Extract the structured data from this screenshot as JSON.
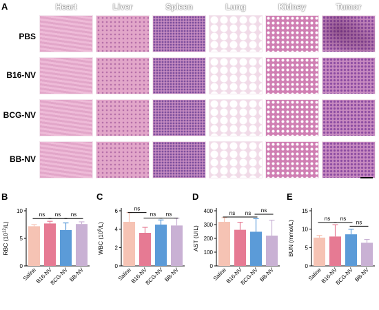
{
  "panel_labels": {
    "a": "A",
    "b": "B",
    "c": "C",
    "d": "D",
    "e": "E"
  },
  "histology": {
    "columns": [
      "Heart",
      "Liver",
      "Spleen",
      "Lung",
      "Kidney",
      "Tumor"
    ],
    "rows": [
      "PBS",
      "B16-NV",
      "BCG-NV",
      "BB-NV"
    ],
    "colors": {
      "tissue": "#e2a6c9",
      "tissue_dark": "#b56fa8",
      "pale": "#f1dbe8"
    }
  },
  "series_colors": [
    "#f6c3b4",
    "#e67a93",
    "#5b9bd8",
    "#c9b1d4"
  ],
  "chart_data": [
    {
      "type": "bar",
      "categories": [
        "Saline",
        "B16-NV",
        "BCG-NV",
        "BB-NV"
      ],
      "values": [
        7.2,
        7.7,
        6.5,
        7.6
      ],
      "errors": [
        0.3,
        0.4,
        1.3,
        0.4
      ],
      "ylabel_parts": [
        "RBC (10",
        "12",
        "/L)"
      ],
      "ylim": [
        0,
        10
      ],
      "yticks": [
        "0",
        "5",
        "10"
      ],
      "ytick_values": [
        0,
        5,
        10
      ],
      "sig": [
        {
          "from": 0,
          "to": 1,
          "label": "ns",
          "y": 8.6
        },
        {
          "from": 1,
          "to": 2,
          "label": "ns",
          "y": 8.6
        },
        {
          "from": 2,
          "to": 3,
          "label": "ns",
          "y": 8.6
        }
      ]
    },
    {
      "type": "bar",
      "categories": [
        "Saline",
        "B16-NV",
        "BCG-NV",
        "BB-NV"
      ],
      "values": [
        4.8,
        3.6,
        4.5,
        4.4
      ],
      "errors": [
        1.0,
        0.6,
        0.5,
        0.8
      ],
      "ylabel_parts": [
        "WBC (10",
        "9",
        "/L)"
      ],
      "ylim": [
        0,
        6
      ],
      "yticks": [
        "0",
        "2",
        "4",
        "6"
      ],
      "ytick_values": [
        0,
        2,
        4,
        6
      ],
      "sig": [
        {
          "from": 0,
          "to": 1,
          "label": "ns",
          "y": 5.8
        },
        {
          "from": 1,
          "to": 2,
          "label": "ns",
          "y": 5.2
        },
        {
          "from": 2,
          "to": 3,
          "label": "ns",
          "y": 5.2
        }
      ]
    },
    {
      "type": "bar",
      "categories": [
        "Saline",
        "B16-NV",
        "BCG-NV",
        "BB-NV"
      ],
      "values": [
        320,
        262,
        248,
        220
      ],
      "errors": [
        30,
        55,
        95,
        112
      ],
      "ylabel_parts": [
        "AST (U/L)",
        "",
        ""
      ],
      "ylim": [
        0,
        400
      ],
      "yticks": [
        "0",
        "100",
        "200",
        "300",
        "400"
      ],
      "ytick_values": [
        0,
        100,
        200,
        300,
        400
      ],
      "sig": [
        {
          "from": 0,
          "to": 1,
          "label": "ns",
          "y": 355
        },
        {
          "from": 1,
          "to": 2,
          "label": "ns",
          "y": 355
        },
        {
          "from": 2,
          "to": 3,
          "label": "ns",
          "y": 375
        }
      ]
    },
    {
      "type": "bar",
      "categories": [
        "Saline",
        "B16-NV",
        "BCG-NV",
        "BB-NV"
      ],
      "values": [
        7.7,
        8.0,
        8.6,
        6.3
      ],
      "errors": [
        0.6,
        3.2,
        1.4,
        0.9
      ],
      "ylabel_parts": [
        "BUN (mmol/L)",
        "",
        ""
      ],
      "ylim": [
        0,
        15
      ],
      "yticks": [
        "0",
        "5",
        "10",
        "15"
      ],
      "ytick_values": [
        0,
        5,
        10,
        15
      ],
      "sig": [
        {
          "from": 0,
          "to": 1,
          "label": "ns",
          "y": 11.8
        },
        {
          "from": 1,
          "to": 2,
          "label": "ns",
          "y": 11.8
        },
        {
          "from": 2,
          "to": 3,
          "label": "ns",
          "y": 10.8
        }
      ]
    }
  ]
}
